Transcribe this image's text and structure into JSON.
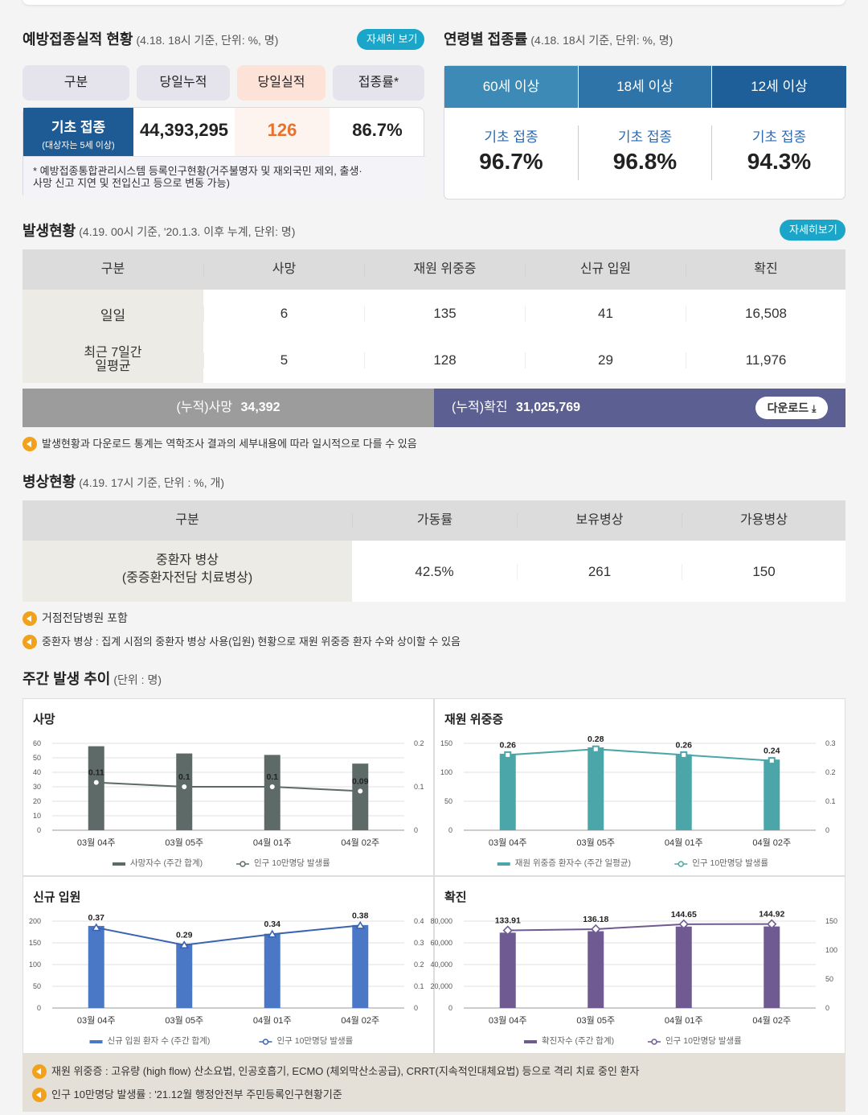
{
  "vaccination": {
    "title": "예방접종실적 현황",
    "subtitle": "(4.18. 18시 기준, 단위: %, 명)",
    "more": "자세히 보기",
    "headers": [
      "구분",
      "당일누적",
      "당일실적",
      "접종률*"
    ],
    "row_label": "기초 접종",
    "row_sublabel": "(대상자는 5세 이상)",
    "cumulative": "44,393,295",
    "today": "126",
    "rate": "86.7%",
    "footnote_line1": "* 예방접종통합관리시스템 등록인구현황(거주불명자 및 재외국민 제외, 출생·",
    "footnote_line2": "사망 신고 지연 및 전입신고 등으로 변동 가능)"
  },
  "age_rate": {
    "title": "연령별 접종률",
    "subtitle": "(4.18. 18시 기준, 단위: %, 명)",
    "groups": [
      {
        "label": "60세 이상",
        "type": "기초 접종",
        "value": "96.7%",
        "color": "#3d8ab7"
      },
      {
        "label": "18세 이상",
        "type": "기초 접종",
        "value": "96.8%",
        "color": "#2f74a8"
      },
      {
        "label": "12세 이상",
        "type": "기초 접종",
        "value": "94.3%",
        "color": "#1f5f99"
      }
    ]
  },
  "outbreak": {
    "title": "발생현황",
    "subtitle": "(4.19. 00시 기준, '20.1.3. 이후 누계, 단위: 명)",
    "more": "자세히보기",
    "headers": [
      "구분",
      "사망",
      "재원 위중증",
      "신규 입원",
      "확진"
    ],
    "rows": [
      {
        "label": "일일",
        "values": [
          "6",
          "135",
          "41",
          "16,508"
        ]
      },
      {
        "label": "최근 7일간 일평균",
        "label1": "최근 7일간",
        "label2": "일평균",
        "values": [
          "5",
          "128",
          "29",
          "11,976"
        ]
      }
    ],
    "cum_death_label": "(누적)사망",
    "cum_death_value": "34,392",
    "cum_conf_label": "(누적)확진",
    "cum_conf_value": "31,025,769",
    "download": "다운로드",
    "note": "발생현황과 다운로드 통계는 역학조사 결과의 세부내용에 따라 일시적으로 다를 수 있음"
  },
  "beds": {
    "title": "병상현황",
    "subtitle": "(4.19. 17시 기준, 단위 : %, 개)",
    "headers": [
      "구분",
      "가동률",
      "보유병상",
      "가용병상"
    ],
    "row_label1": "중환자 병상",
    "row_label2": "(중증환자전담 치료병상)",
    "values": [
      "42.5%",
      "261",
      "150"
    ],
    "notes": [
      "거점전담병원 포함",
      "중환자 병상 : 집계 시점의 중환자 병상 사용(입원) 현황으로 재원 위중증 환자 수와 상이할 수 있음"
    ]
  },
  "weekly": {
    "title": "주간 발생 추이",
    "subtitle": "(단위 : 명)",
    "notes": [
      "재원 위중증 : 고유량 (high flow) 산소요법, 인공호흡기, ECMO (체외막산소공급), CRRT(지속적인대체요법) 등으로 격리 치료 중인 환자",
      "인구 10만명당 발생률 : '21.12월 행정안전부 주민등록인구현황기준"
    ]
  },
  "chart_data": [
    {
      "type": "bar",
      "title": "사망",
      "categories": [
        "03월 04주",
        "03월 05주",
        "04월 01주",
        "04월 02주"
      ],
      "series": [
        {
          "name": "사망자수 (주간 합계)",
          "values": [
            58,
            53,
            52,
            46
          ],
          "color": "#5e6a68"
        },
        {
          "name": "인구 10만명당 발생률",
          "values": [
            0.11,
            0.1,
            0.1,
            0.09
          ],
          "color": "#5e6a68",
          "axis": "right",
          "line": true
        }
      ],
      "y_ticks": [
        "0",
        "10",
        "20",
        "30",
        "40",
        "50",
        "60"
      ],
      "ylim": [
        0,
        60
      ],
      "y2_ticks": [
        "0",
        "0.1",
        "0.2"
      ],
      "y2lim": [
        0,
        0.2
      ],
      "labels": [
        "0.11",
        "0.1",
        "0.1",
        "0.09"
      ],
      "marker": "circle"
    },
    {
      "type": "bar",
      "title": "재원 위중증",
      "categories": [
        "03월 04주",
        "03월 05주",
        "04월 01주",
        "04월 02주"
      ],
      "series": [
        {
          "name": "재원 위중증 환자수 (주간 일평균)",
          "values": [
            132,
            143,
            131,
            122
          ],
          "color": "#4aa6a8"
        },
        {
          "name": "인구 10만명당 발생률",
          "values": [
            0.26,
            0.28,
            0.26,
            0.24
          ],
          "color": "#4aa6a8",
          "axis": "right",
          "line": true
        }
      ],
      "y_ticks": [
        "0",
        "50",
        "100",
        "150"
      ],
      "ylim": [
        0,
        150
      ],
      "y2_ticks": [
        "0",
        "0.1",
        "0.2",
        "0.3"
      ],
      "y2lim": [
        0,
        0.3
      ],
      "labels": [
        "0.26",
        "0.28",
        "0.26",
        "0.24"
      ],
      "marker": "square"
    },
    {
      "type": "bar",
      "title": "신규 입원",
      "categories": [
        "03월 04주",
        "03월 05주",
        "04월 01주",
        "04월 02주"
      ],
      "series": [
        {
          "name": "신규 입원 환자 수 (주간 합계)",
          "values": [
            189,
            148,
            171,
            191
          ],
          "color": "#4a78c6"
        },
        {
          "name": "인구 10만명당 발생률",
          "values": [
            0.37,
            0.29,
            0.34,
            0.38
          ],
          "color": "#3a64b0",
          "axis": "right",
          "line": true
        }
      ],
      "y_ticks": [
        "0",
        "50",
        "100",
        "150",
        "200"
      ],
      "ylim": [
        0,
        200
      ],
      "y2_ticks": [
        "0",
        "0.1",
        "0.2",
        "0.3",
        "0.4"
      ],
      "y2lim": [
        0,
        0.4
      ],
      "labels": [
        "0.37",
        "0.29",
        "0.34",
        "0.38"
      ],
      "marker": "triangle"
    },
    {
      "type": "bar",
      "title": "확진",
      "categories": [
        "03월 04주",
        "03월 05주",
        "04월 01주",
        "04월 02주"
      ],
      "series": [
        {
          "name": "확진자수 (주간 합계)",
          "values": [
            69400,
            70700,
            75000,
            75100
          ],
          "color": "#6f5a92"
        },
        {
          "name": "인구 10만명당 발생률",
          "values": [
            133.91,
            136.18,
            144.65,
            144.92
          ],
          "color": "#6f5a92",
          "axis": "right",
          "line": true
        }
      ],
      "y_ticks": [
        "0",
        "20,000",
        "40,000",
        "60,000",
        "80,000"
      ],
      "ylim": [
        0,
        80000
      ],
      "y2_ticks": [
        "0",
        "50",
        "100",
        "150"
      ],
      "y2lim": [
        0,
        150
      ],
      "labels": [
        "133.91",
        "136.18",
        "144.65",
        "144.92"
      ],
      "marker": "diamond"
    }
  ]
}
